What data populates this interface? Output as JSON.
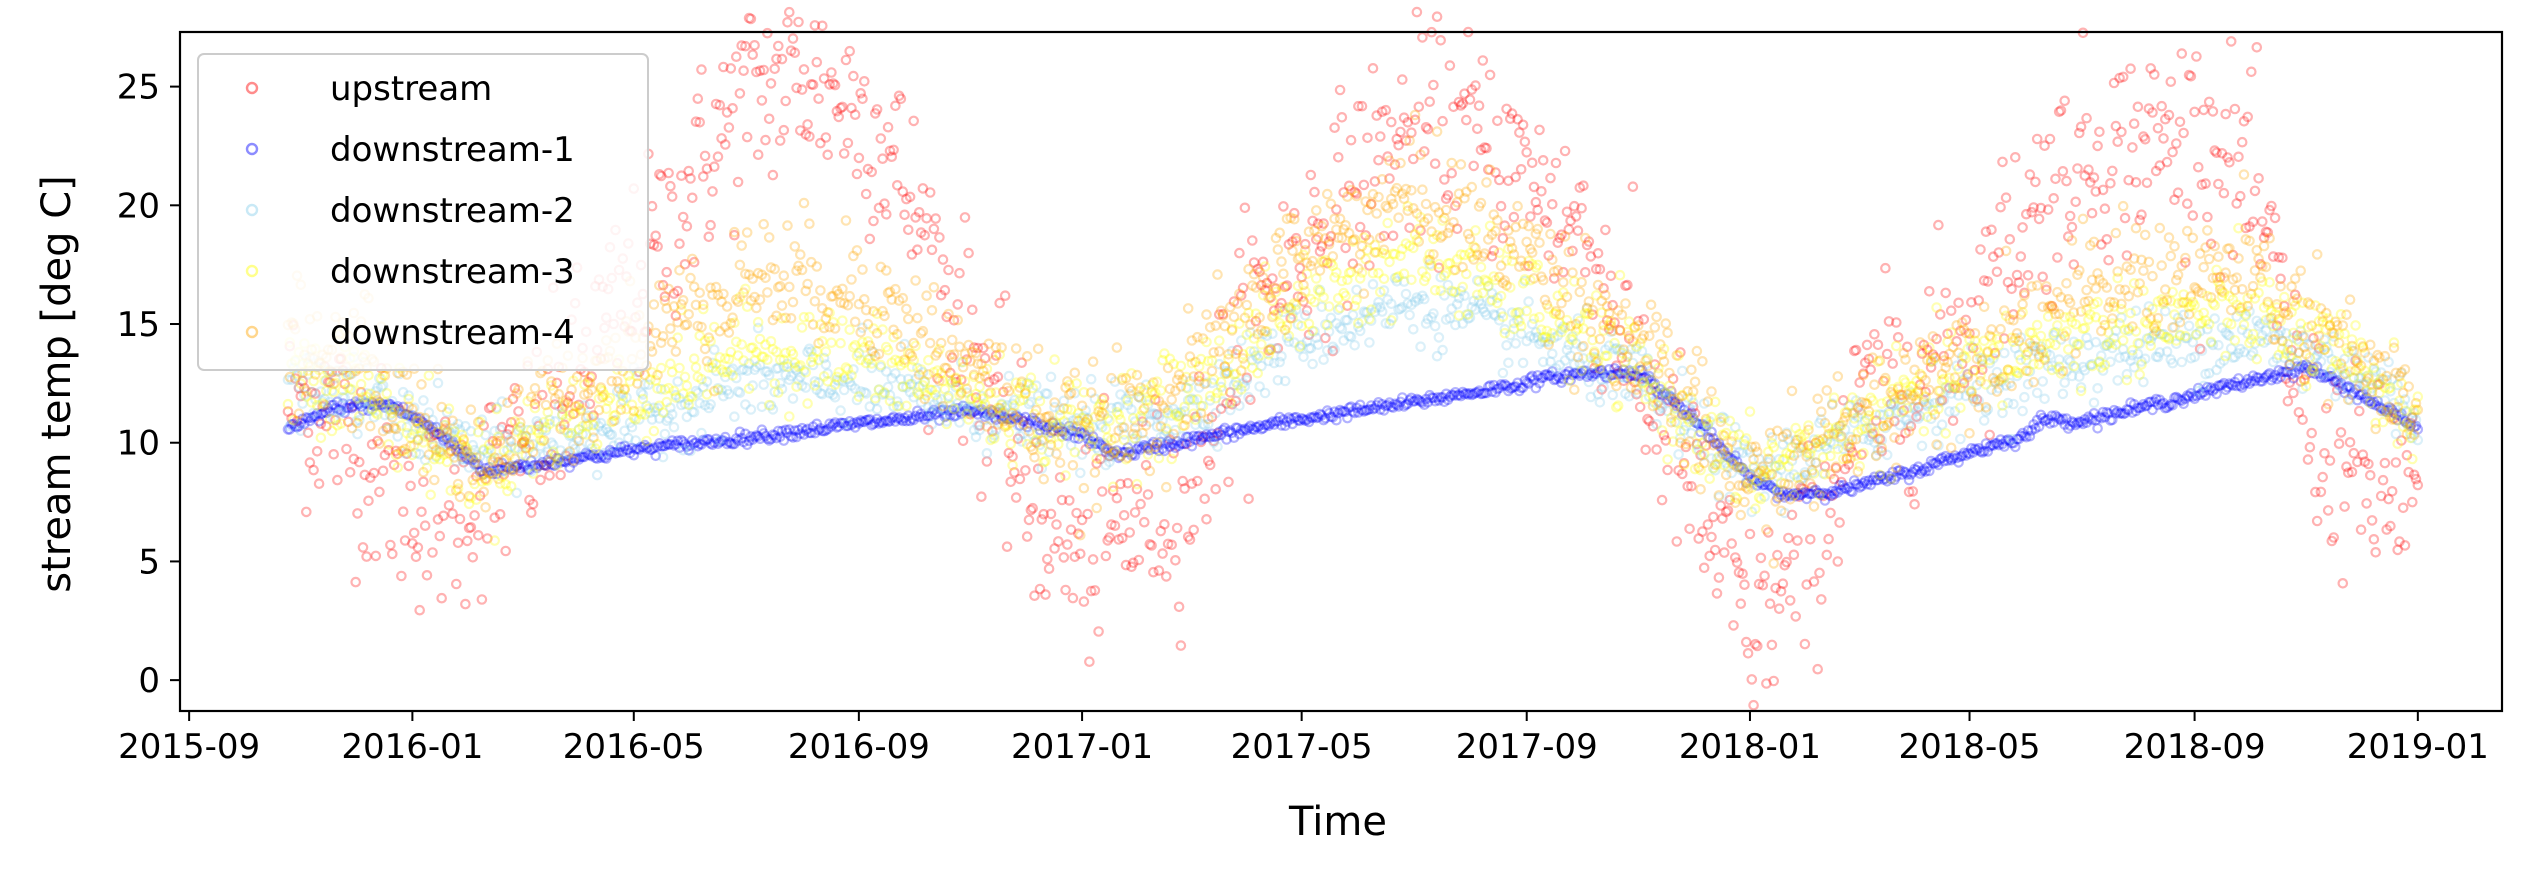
{
  "chart_data": {
    "type": "scatter",
    "title": "",
    "xlabel": "Time",
    "ylabel": "stream temp [deg C]",
    "x_ticks": [
      "2015-09",
      "2016-01",
      "2016-05",
      "2016-09",
      "2017-01",
      "2017-05",
      "2017-09",
      "2018-01",
      "2018-05",
      "2018-09",
      "2019-01"
    ],
    "y_ticks": [
      0,
      5,
      10,
      15,
      20,
      25
    ],
    "xlim": [
      "2015-08-27",
      "2019-02-16"
    ],
    "ylim": [
      -1.3,
      27.3
    ],
    "grid": false,
    "legend_position": "top-left",
    "marker": "open-circle",
    "series": [
      {
        "name": "upstream",
        "color": "#ff0000",
        "keypoints": [
          [
            "2015-10-25",
            12
          ],
          [
            "2015-11-20",
            11
          ],
          [
            "2015-12-10",
            9
          ],
          [
            "2016-01-10",
            7
          ],
          [
            "2016-02-10",
            8
          ],
          [
            "2016-03-10",
            10
          ],
          [
            "2016-04-10",
            14
          ],
          [
            "2016-05-10",
            17.5
          ],
          [
            "2016-06-10",
            22
          ],
          [
            "2016-07-01",
            24.5
          ],
          [
            "2016-08-01",
            25.5
          ],
          [
            "2016-09-01",
            24
          ],
          [
            "2016-09-20",
            22
          ],
          [
            "2016-10-10",
            18
          ],
          [
            "2016-11-01",
            14
          ],
          [
            "2016-12-01",
            8
          ],
          [
            "2017-01-01",
            5
          ],
          [
            "2017-02-01",
            7
          ],
          [
            "2017-03-01",
            8
          ],
          [
            "2017-04-01",
            15
          ],
          [
            "2017-05-01",
            18
          ],
          [
            "2017-06-01",
            21
          ],
          [
            "2017-07-01",
            23
          ],
          [
            "2017-08-01",
            23
          ],
          [
            "2017-09-01",
            21
          ],
          [
            "2017-10-01",
            19
          ],
          [
            "2017-11-01",
            13
          ],
          [
            "2017-12-01",
            8
          ],
          [
            "2018-01-01",
            2
          ],
          [
            "2018-02-01",
            5
          ],
          [
            "2018-03-01",
            11
          ],
          [
            "2018-04-01",
            13
          ],
          [
            "2018-05-01",
            15
          ],
          [
            "2018-06-01",
            19.5
          ],
          [
            "2018-07-01",
            22
          ],
          [
            "2018-08-01",
            22.5
          ],
          [
            "2018-09-01",
            23
          ],
          [
            "2018-10-01",
            21
          ],
          [
            "2018-11-01",
            11
          ],
          [
            "2018-12-01",
            8
          ],
          [
            "2019-01-01",
            8
          ]
        ],
        "noise": 2.2
      },
      {
        "name": "downstream-1",
        "color": "#0000ff",
        "keypoints": [
          [
            "2015-10-25",
            10.5
          ],
          [
            "2015-11-20",
            11.5
          ],
          [
            "2015-12-20",
            11.6
          ],
          [
            "2016-01-10",
            10.7
          ],
          [
            "2016-02-10",
            8.8
          ],
          [
            "2016-03-10",
            9.1
          ],
          [
            "2016-05-01",
            9.7
          ],
          [
            "2016-07-01",
            10.2
          ],
          [
            "2016-09-01",
            10.8
          ],
          [
            "2016-11-01",
            11.3
          ],
          [
            "2016-12-01",
            10.9
          ],
          [
            "2017-01-01",
            10.3
          ],
          [
            "2017-01-20",
            9.5
          ],
          [
            "2017-03-01",
            10.1
          ],
          [
            "2017-05-01",
            11.0
          ],
          [
            "2017-07-01",
            11.7
          ],
          [
            "2017-09-01",
            12.5
          ],
          [
            "2017-09-10",
            12.7
          ],
          [
            "2017-10-01",
            12.9
          ],
          [
            "2017-11-01",
            13.0
          ],
          [
            "2017-12-01",
            11.0
          ],
          [
            "2018-01-01",
            8.5
          ],
          [
            "2018-01-20",
            7.8
          ],
          [
            "2018-02-20",
            8.0
          ],
          [
            "2018-04-01",
            8.8
          ],
          [
            "2018-05-01",
            9.6
          ],
          [
            "2018-06-01",
            10.3
          ],
          [
            "2018-06-10",
            11.0
          ],
          [
            "2018-07-01",
            10.9
          ],
          [
            "2018-09-01",
            12.0
          ],
          [
            "2018-10-01",
            12.6
          ],
          [
            "2018-11-01",
            13.2
          ],
          [
            "2018-12-01",
            12.0
          ],
          [
            "2019-01-01",
            10.6
          ]
        ],
        "noise": 0.12
      },
      {
        "name": "downstream-2",
        "color": "#87ceeb",
        "keypoints": [
          [
            "2015-10-25",
            12.5
          ],
          [
            "2015-12-01",
            12
          ],
          [
            "2016-01-10",
            10.5
          ],
          [
            "2016-02-10",
            9.5
          ],
          [
            "2016-03-10",
            10
          ],
          [
            "2016-05-01",
            11
          ],
          [
            "2016-07-01",
            12.5
          ],
          [
            "2016-09-01",
            12.5
          ],
          [
            "2016-11-01",
            11.5
          ],
          [
            "2017-01-01",
            10.5
          ],
          [
            "2017-03-01",
            11.5
          ],
          [
            "2017-05-01",
            14.5
          ],
          [
            "2017-07-01",
            16
          ],
          [
            "2017-09-01",
            14.5
          ],
          [
            "2017-11-01",
            12.5
          ],
          [
            "2018-01-01",
            8.5
          ],
          [
            "2018-02-01",
            9.5
          ],
          [
            "2018-04-01",
            11.5
          ],
          [
            "2018-06-01",
            13
          ],
          [
            "2018-08-01",
            14
          ],
          [
            "2018-10-01",
            14.5
          ],
          [
            "2018-12-01",
            13
          ],
          [
            "2019-01-01",
            11
          ]
        ],
        "noise": 0.8
      },
      {
        "name": "downstream-3",
        "color": "#ffff00",
        "keypoints": [
          [
            "2015-10-25",
            13
          ],
          [
            "2015-12-01",
            12.5
          ],
          [
            "2016-01-10",
            10
          ],
          [
            "2016-02-10",
            9
          ],
          [
            "2016-03-10",
            10.5
          ],
          [
            "2016-05-01",
            12
          ],
          [
            "2016-07-01",
            14
          ],
          [
            "2016-09-01",
            13.5
          ],
          [
            "2016-11-01",
            12
          ],
          [
            "2017-01-01",
            10.5
          ],
          [
            "2017-03-01",
            12
          ],
          [
            "2017-05-01",
            16
          ],
          [
            "2017-07-01",
            18
          ],
          [
            "2017-09-01",
            16
          ],
          [
            "2017-11-01",
            13
          ],
          [
            "2018-01-01",
            8.5
          ],
          [
            "2018-02-01",
            9.5
          ],
          [
            "2018-04-01",
            12
          ],
          [
            "2018-06-01",
            14
          ],
          [
            "2018-08-01",
            15
          ],
          [
            "2018-10-01",
            15.5
          ],
          [
            "2018-12-01",
            13
          ],
          [
            "2019-01-01",
            11
          ]
        ],
        "noise": 1.0
      },
      {
        "name": "downstream-4",
        "color": "#ffa500",
        "keypoints": [
          [
            "2015-10-25",
            14
          ],
          [
            "2015-12-01",
            13.5
          ],
          [
            "2016-01-10",
            10.5
          ],
          [
            "2016-02-10",
            9
          ],
          [
            "2016-03-10",
            11
          ],
          [
            "2016-05-01",
            14
          ],
          [
            "2016-07-01",
            17
          ],
          [
            "2016-09-01",
            16.5
          ],
          [
            "2016-11-01",
            13
          ],
          [
            "2017-01-01",
            10
          ],
          [
            "2017-03-01",
            12.5
          ],
          [
            "2017-05-01",
            18
          ],
          [
            "2017-07-01",
            20.5
          ],
          [
            "2017-09-01",
            18
          ],
          [
            "2017-11-01",
            14
          ],
          [
            "2018-01-01",
            8
          ],
          [
            "2018-02-01",
            9.5
          ],
          [
            "2018-04-01",
            12.5
          ],
          [
            "2018-06-01",
            15
          ],
          [
            "2018-08-01",
            17
          ],
          [
            "2018-10-01",
            17
          ],
          [
            "2018-12-01",
            13
          ],
          [
            "2019-01-01",
            11
          ]
        ],
        "noise": 1.3
      }
    ]
  }
}
